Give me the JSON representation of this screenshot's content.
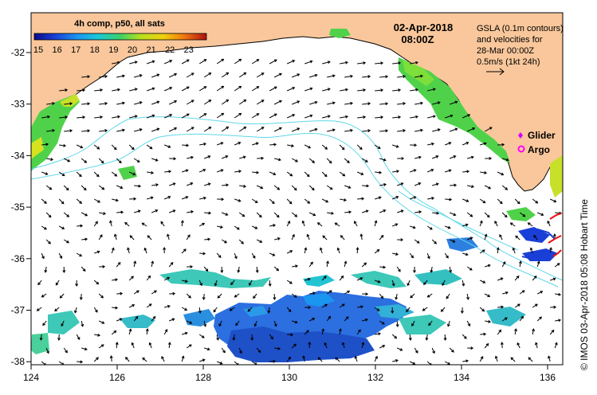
{
  "header": {
    "date": "02-Apr-2018",
    "time": "08:00Z"
  },
  "colorbar": {
    "title": "4h comp, p50, all sats",
    "ticks": [
      "15",
      "16",
      "17",
      "18",
      "19",
      "20",
      "21",
      "22",
      "23"
    ]
  },
  "notes": {
    "line1": "GSLA (0.1m contours)",
    "line2": "and velocities for",
    "line3": "28-Mar 00:00Z",
    "line4": "0.5m/s (1kt 24h)"
  },
  "legend": {
    "glider": "Glider",
    "argo": "Argo"
  },
  "credit": "© IMOS 03-Apr-2018 05:08 Hobart Time",
  "axes": {
    "x_ticks": [
      "124",
      "126",
      "128",
      "130",
      "132",
      "134",
      "136"
    ],
    "y_ticks": [
      "-32",
      "-33",
      "-34",
      "-35",
      "-36",
      "-37",
      "-38"
    ]
  },
  "colors": {
    "land": "#f9c79b",
    "ocean": "#ffffff",
    "contour": "#5fd8e8",
    "glider": "#d400ff",
    "argo": "#ff00ff"
  }
}
